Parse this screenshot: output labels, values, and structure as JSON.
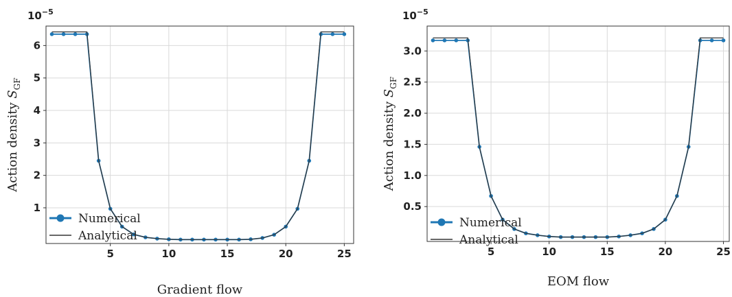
{
  "chart_data": [
    {
      "type": "line",
      "scale_label": "10−5",
      "xlabel": "Gradient flow",
      "ylabel_main": "Action density ",
      "ylabel_sym": "S",
      "ylabel_sub": "GF",
      "xlim": [
        -0.5,
        25.8
      ],
      "ylim": [
        -0.1,
        6.6
      ],
      "x_ticks": [
        5,
        10,
        15,
        20,
        25
      ],
      "x_tick_labels": [
        "5",
        "10",
        "15",
        "20",
        "25"
      ],
      "y_ticks": [
        1,
        2,
        3,
        4,
        5,
        6
      ],
      "y_tick_labels": [
        "1",
        "2",
        "3",
        "4",
        "5",
        "6"
      ],
      "grid": true,
      "legend_position": "bottom-left",
      "series": [
        {
          "name": "Numerical",
          "color": "#1f77b4",
          "marker": "circle",
          "x": [
            0,
            1,
            2,
            3,
            4,
            5,
            6,
            7,
            8,
            9,
            10,
            11,
            12,
            13,
            14,
            15,
            16,
            17,
            18,
            19,
            20,
            21,
            22,
            23,
            24,
            25
          ],
          "y": [
            6.35,
            6.35,
            6.35,
            6.35,
            2.45,
            0.97,
            0.42,
            0.18,
            0.09,
            0.05,
            0.03,
            0.02,
            0.02,
            0.02,
            0.02,
            0.02,
            0.02,
            0.03,
            0.07,
            0.17,
            0.42,
            0.97,
            2.45,
            6.35,
            6.35,
            6.35
          ]
        },
        {
          "name": "Analytical",
          "color": "#333333",
          "marker": "none",
          "x": [
            0,
            1,
            2,
            3,
            4,
            5,
            6,
            7,
            8,
            9,
            10,
            11,
            12,
            13,
            14,
            15,
            16,
            17,
            18,
            19,
            20,
            21,
            22,
            23,
            24,
            25
          ],
          "y": [
            6.42,
            6.42,
            6.42,
            6.42,
            2.45,
            0.97,
            0.42,
            0.18,
            0.09,
            0.05,
            0.03,
            0.02,
            0.02,
            0.02,
            0.02,
            0.02,
            0.02,
            0.03,
            0.07,
            0.17,
            0.42,
            0.97,
            2.45,
            6.42,
            6.42,
            6.42
          ]
        }
      ]
    },
    {
      "type": "line",
      "scale_label": "10−5",
      "xlabel": "EOM flow",
      "ylabel_main": "Action density ",
      "ylabel_sym": "S",
      "ylabel_sub": "GF",
      "xlim": [
        -0.5,
        25.5
      ],
      "ylim": [
        -0.06,
        3.4
      ],
      "x_ticks": [
        5,
        10,
        15,
        20,
        25
      ],
      "x_tick_labels": [
        "5",
        "10",
        "15",
        "20",
        "25"
      ],
      "y_ticks": [
        0.5,
        1.0,
        1.5,
        2.0,
        2.5,
        3.0
      ],
      "y_tick_labels": [
        "0.5",
        "1.0",
        "1.5",
        "2.0",
        "2.5",
        "3.0"
      ],
      "grid": true,
      "legend_position": "bottom-left",
      "series": [
        {
          "name": "Numerical",
          "color": "#1f77b4",
          "marker": "circle",
          "x": [
            0,
            1,
            2,
            3,
            4,
            5,
            6,
            7,
            8,
            9,
            10,
            11,
            12,
            13,
            14,
            15,
            16,
            17,
            18,
            19,
            20,
            21,
            22,
            23,
            24,
            25
          ],
          "y": [
            3.17,
            3.17,
            3.17,
            3.17,
            1.46,
            0.67,
            0.29,
            0.14,
            0.07,
            0.04,
            0.02,
            0.01,
            0.01,
            0.01,
            0.01,
            0.01,
            0.02,
            0.04,
            0.07,
            0.14,
            0.29,
            0.67,
            1.46,
            3.17,
            3.17,
            3.17
          ]
        },
        {
          "name": "Analytical",
          "color": "#333333",
          "marker": "none",
          "x": [
            0,
            1,
            2,
            3,
            4,
            5,
            6,
            7,
            8,
            9,
            10,
            11,
            12,
            13,
            14,
            15,
            16,
            17,
            18,
            19,
            20,
            21,
            22,
            23,
            24,
            25
          ],
          "y": [
            3.21,
            3.21,
            3.21,
            3.21,
            1.46,
            0.67,
            0.29,
            0.14,
            0.07,
            0.04,
            0.02,
            0.01,
            0.01,
            0.01,
            0.01,
            0.01,
            0.02,
            0.04,
            0.07,
            0.14,
            0.29,
            0.67,
            1.46,
            3.21,
            3.21,
            3.21
          ]
        }
      ]
    }
  ]
}
